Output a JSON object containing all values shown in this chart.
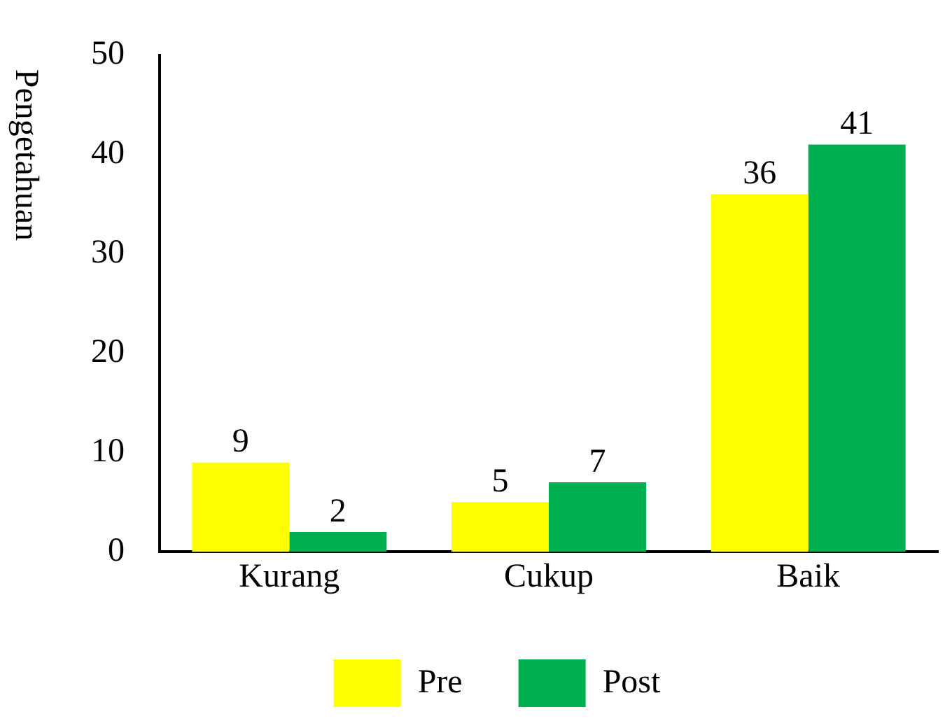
{
  "chart_data": {
    "type": "bar",
    "ylabel": "Pengetahuan",
    "categories": [
      "Kurang",
      "Cukup",
      "Baik"
    ],
    "series": [
      {
        "name": "Pre",
        "color": "#ffff00",
        "values": [
          9,
          5,
          36
        ]
      },
      {
        "name": "Post",
        "color": "#00b050",
        "values": [
          2,
          7,
          41
        ]
      }
    ],
    "ylim": [
      0,
      50
    ],
    "yticks": [
      0,
      10,
      20,
      30,
      40,
      50
    ],
    "grid": false,
    "legend": "bottom",
    "data_labels": true
  }
}
